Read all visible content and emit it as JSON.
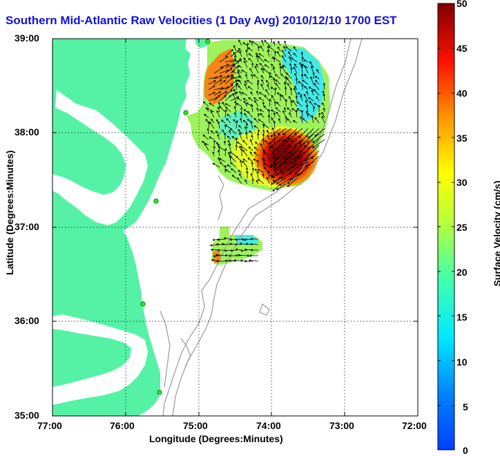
{
  "title": "Southern Mid-Atlantic Raw Velocities (1 Day Avg) 2010/12/10 1700 EST",
  "xlabel": "Longitude (Degrees:Minutes)",
  "ylabel": "Latitude (Degrees:Minutes)",
  "colorbar_label": "Surface Velocity (cm/s)",
  "map": {
    "lon_range": [
      -77,
      -72
    ],
    "lat_range": [
      35,
      39
    ],
    "lon_ticks": [
      "77:00",
      "76:00",
      "75:00",
      "74:00",
      "73:00",
      "72:00"
    ],
    "lat_ticks": [
      "39:00",
      "38:00",
      "37:00",
      "36:00",
      "35:00"
    ],
    "colorbar_ticks": [
      "50",
      "45",
      "40",
      "35",
      "30",
      "25",
      "20",
      "15",
      "10",
      "5",
      "0"
    ],
    "colorbar_range_cm_s": [
      0,
      50
    ],
    "grid": "dotted",
    "land_color": "#55f2a6",
    "velocity_colormap": "jet"
  }
}
